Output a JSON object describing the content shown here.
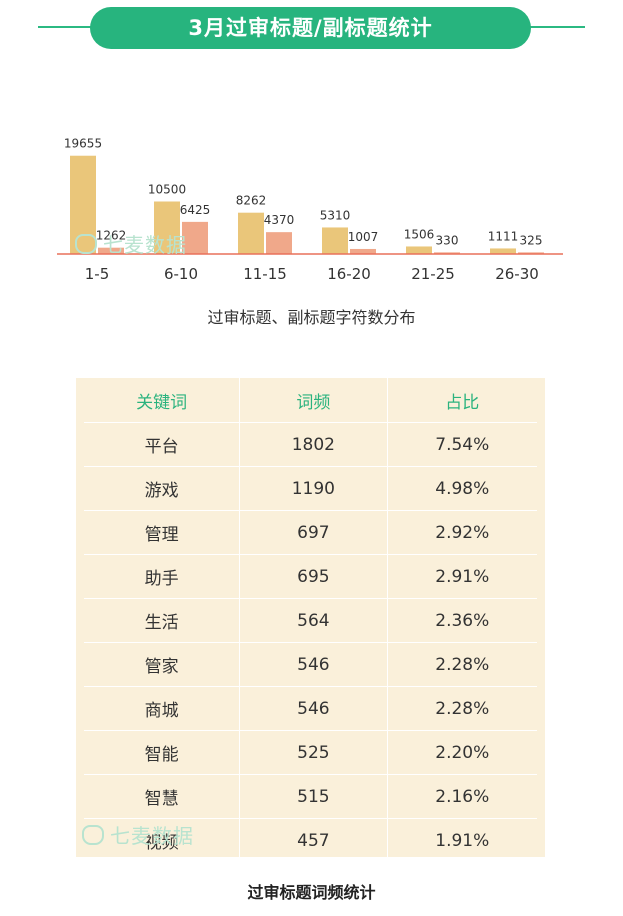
{
  "header": {
    "title": "3月过审标题/副标题统计"
  },
  "watermark": "七麦数据",
  "chart_data": {
    "type": "bar",
    "title": "过审标题、副标题字符数分布",
    "categories": [
      "1-5",
      "6-10",
      "11-15",
      "16-20",
      "21-25",
      "26-30"
    ],
    "series": [
      {
        "values": [
          19655,
          10500,
          8262,
          5310,
          1506,
          1111
        ]
      },
      {
        "values": [
          1262,
          6425,
          4370,
          1007,
          330,
          325
        ]
      }
    ],
    "colors": [
      "#eac67a",
      "#f0a88a"
    ],
    "axis_color": "#e9715a",
    "ylim": [
      0,
      20000
    ],
    "grid": false
  },
  "table": {
    "title": "过审标题词频统计",
    "headers": [
      "关键词",
      "词频",
      "占比"
    ],
    "rows": [
      [
        "平台",
        "1802",
        "7.54%"
      ],
      [
        "游戏",
        "1190",
        "4.98%"
      ],
      [
        "管理",
        "697",
        "2.92%"
      ],
      [
        "助手",
        "695",
        "2.91%"
      ],
      [
        "生活",
        "564",
        "2.36%"
      ],
      [
        "管家",
        "546",
        "2.28%"
      ],
      [
        "商城",
        "546",
        "2.28%"
      ],
      [
        "智能",
        "525",
        "2.20%"
      ],
      [
        "智慧",
        "515",
        "2.16%"
      ],
      [
        "视频",
        "457",
        "1.91%"
      ]
    ]
  }
}
